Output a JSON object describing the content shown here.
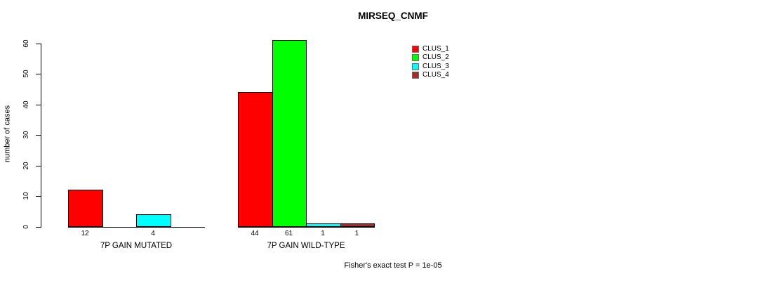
{
  "title": "MIRSEQ_CNMF",
  "chart_data": {
    "type": "bar",
    "title": "MIRSEQ_CNMF",
    "xlabel": "",
    "ylabel": "number of cases",
    "ylim": [
      0,
      60
    ],
    "yticks": [
      0,
      10,
      20,
      30,
      40,
      50,
      60
    ],
    "grid": false,
    "legend_position": "top-right",
    "bar_value_labels_shown": true,
    "categories": [
      "7P GAIN MUTATED",
      "7P GAIN WILD-TYPE"
    ],
    "series": [
      {
        "name": "CLUS_1",
        "color": "#ff0000",
        "values": [
          12,
          44
        ]
      },
      {
        "name": "CLUS_2",
        "color": "#00ff00",
        "values": [
          0,
          61
        ]
      },
      {
        "name": "CLUS_3",
        "color": "#00ffff",
        "values": [
          4,
          1
        ]
      },
      {
        "name": "CLUS_4",
        "color": "#a52a2a",
        "values": [
          0,
          1
        ]
      }
    ],
    "annotation": "Fisher's exact test P = 1e-05"
  }
}
